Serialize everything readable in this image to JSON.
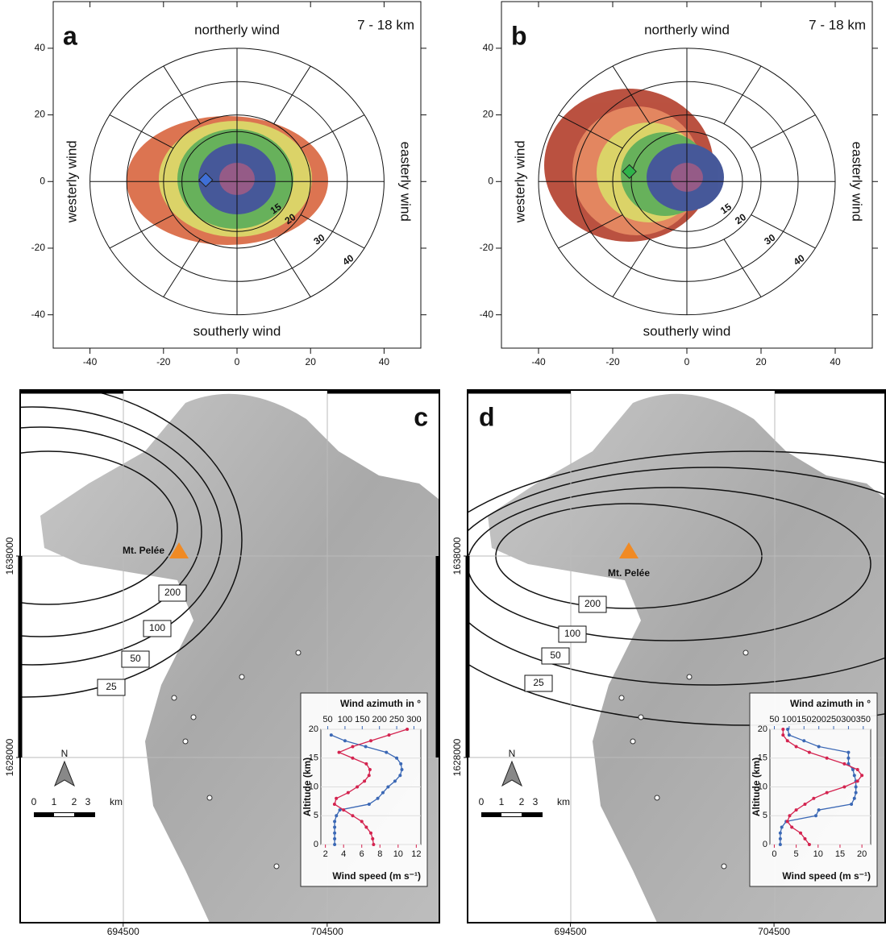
{
  "chart_data": [
    {
      "type": "scatter",
      "panel": "a",
      "title": "7 - 18 km",
      "north": "northerly wind",
      "south": "southerly wind",
      "west": "westerly wind",
      "east": "easterly wind",
      "xlim": [
        -50,
        50
      ],
      "ylim": [
        -50,
        54
      ],
      "xticks": [
        -40,
        -20,
        0,
        20,
        40
      ],
      "yticks": [
        -40,
        -20,
        0,
        20,
        40
      ],
      "rings": [
        15,
        20,
        30,
        40
      ],
      "series": [
        {
          "color": "#3f6fd6",
          "x": [
            -8.5
          ],
          "values": [
            0.5
          ]
        }
      ]
    },
    {
      "type": "scatter",
      "panel": "b",
      "title": "7 - 18 km",
      "north": "northerly wind",
      "south": "southerly wind",
      "west": "westerly wind",
      "east": "easterly wind",
      "xlim": [
        -50,
        50
      ],
      "ylim": [
        -50,
        54
      ],
      "xticks": [
        -40,
        -20,
        0,
        20,
        40
      ],
      "yticks": [
        -40,
        -20,
        0,
        20,
        40
      ],
      "rings": [
        15,
        20,
        30,
        40
      ],
      "series": [
        {
          "color": "#2fb34a",
          "x": [
            -15.5
          ],
          "values": [
            3
          ]
        }
      ]
    },
    {
      "type": "map",
      "panel": "c",
      "volcano": "Mt. Pelée",
      "contour_labels": [
        200,
        100,
        50,
        25
      ],
      "xlim": [
        689450,
        710000
      ],
      "ylim": [
        1619800,
        1646240
      ],
      "xticks": [
        694500,
        704500
      ],
      "yticks": [
        1628000,
        1638000
      ],
      "scale_labels": [
        "0",
        "1",
        "2",
        "3",
        "km"
      ],
      "north_label": "N",
      "inset": {
        "type": "line",
        "x2_label": "Wind azimuth in °",
        "x_label": "Wind speed (m s⁻¹)",
        "y_label": "Altitude (km)",
        "y": [
          0,
          1,
          2,
          3,
          4,
          5,
          6,
          7,
          8,
          9,
          10,
          11,
          12,
          13,
          14,
          15,
          16,
          17,
          18,
          19,
          20
        ],
        "ylim": [
          0,
          20
        ],
        "yticks": [
          0,
          5,
          10,
          15,
          20
        ],
        "xlim": [
          1.5,
          12.5
        ],
        "xticks": [
          2,
          4,
          6,
          8,
          10,
          12
        ],
        "x2lim": [
          30,
          320
        ],
        "x2ticks": [
          50,
          100,
          150,
          200,
          250,
          300
        ],
        "series": [
          {
            "color": "#3b68b5",
            "axis": "x2",
            "values": [
              70,
              70,
              70,
              70,
              70,
              75,
              85,
              170,
              195,
              210,
              225,
              245,
              260,
              265,
              262,
              250,
              220,
              160,
              100,
              60,
              null
            ]
          },
          {
            "color": "#d4234f",
            "axis": "x",
            "values": [
              7.3,
              7.2,
              7,
              6.5,
              6,
              5,
              4,
              3,
              3.2,
              4.5,
              5.5,
              6.3,
              6.8,
              6.9,
              6.5,
              5,
              3.5,
              5,
              7,
              9,
              11
            ]
          }
        ]
      }
    },
    {
      "type": "map",
      "panel": "d",
      "volcano": "Mt. Pelée",
      "contour_labels": [
        200,
        100,
        50,
        25
      ],
      "xlim": [
        689450,
        710000
      ],
      "ylim": [
        1619800,
        1646240
      ],
      "xticks": [
        694500,
        704500
      ],
      "yticks": [
        1628000,
        1638000
      ],
      "scale_labels": [
        "0",
        "1",
        "2",
        "3",
        "km"
      ],
      "north_label": "N",
      "inset": {
        "type": "line",
        "x2_label": "Wind azimuth in °",
        "x_label": "Wind speed (m s⁻¹)",
        "y_label": "Altitude (km)",
        "y": [
          0,
          1,
          2,
          3,
          4,
          5,
          6,
          7,
          8,
          9,
          10,
          11,
          12,
          13,
          14,
          15,
          16,
          17,
          18,
          19,
          20
        ],
        "ylim": [
          0,
          20
        ],
        "yticks": [
          0,
          5,
          10,
          15,
          20
        ],
        "xlim": [
          -1,
          22
        ],
        "xticks": [
          0,
          5,
          10,
          15,
          20
        ],
        "x2lim": [
          35,
          375
        ],
        "x2ticks": [
          50,
          100,
          150,
          200,
          250,
          300,
          350
        ],
        "series": [
          {
            "color": "#3b68b5",
            "axis": "x2",
            "values": [
              70,
              70,
              70,
              75,
              90,
              190,
              200,
              310,
              320,
              325,
              325,
              325,
              320,
              315,
              300,
              300,
              300,
              200,
              150,
              100,
              95
            ]
          },
          {
            "color": "#d4234f",
            "axis": "x",
            "values": [
              8,
              7,
              6,
              4,
              3,
              3.5,
              5,
              7,
              9,
              12,
              16,
              19,
              20,
              19,
              16,
              12,
              8,
              5,
              3,
              2,
              2
            ]
          }
        ]
      }
    }
  ]
}
